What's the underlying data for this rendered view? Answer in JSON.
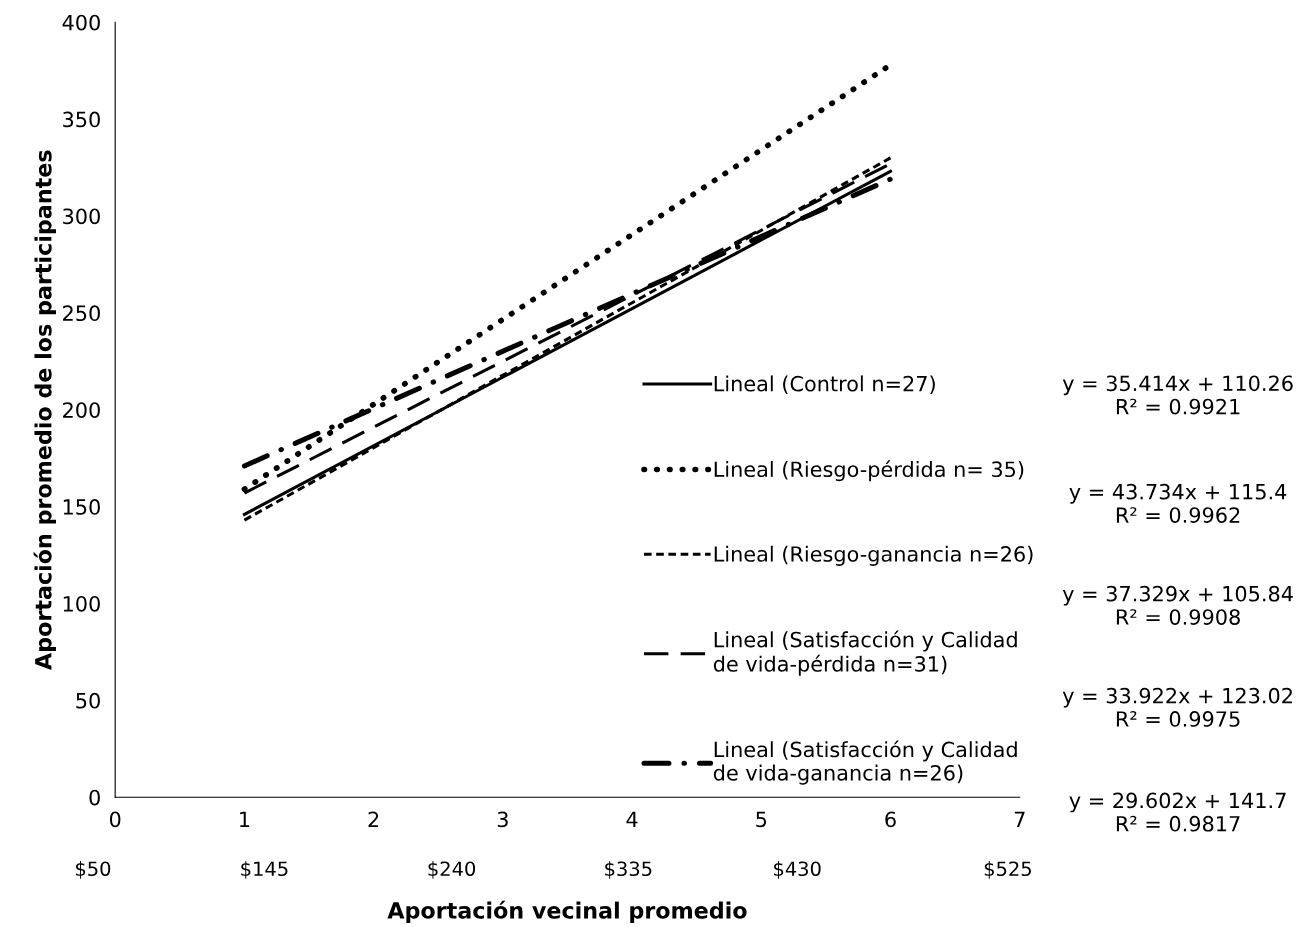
{
  "chart_data": {
    "type": "line",
    "xlabel": "Aportación vecinal promedio",
    "ylabel": "Aportación promedio de los participantes",
    "xlim": [
      0,
      7
    ],
    "xticks": [
      0,
      1,
      2,
      3,
      4,
      5,
      6,
      7
    ],
    "ylim": [
      0,
      400
    ],
    "yticks": [
      0,
      50,
      100,
      150,
      200,
      250,
      300,
      350,
      400
    ],
    "x": [
      1,
      6
    ],
    "grid": false,
    "legend": "right",
    "marker": "none",
    "series": [
      {
        "name": "Lineal (Control n=27)",
        "color": "#000000",
        "line_style": "solid",
        "values": [
          146,
          323
        ]
      },
      {
        "name": "Lineal (Riesgo-pérdida n= 35)",
        "color": "#000000",
        "line_style": "dotted",
        "values": [
          159,
          378
        ]
      },
      {
        "name": "Lineal (Riesgo-ganancia n=26)",
        "color": "#000000",
        "line_style": "dashed",
        "values": [
          143,
          330
        ]
      },
      {
        "name": "Lineal (Satisfacción y Calidad\nde vida-pérdida n=31)",
        "color": "#000000",
        "line_style": "longdash",
        "values": [
          157,
          327
        ]
      },
      {
        "name": "Lineal (Satisfacción y Calidad\nde vida-ganancia n=26)",
        "color": "#000000",
        "line_style": "longdashdot",
        "values": [
          171,
          319
        ]
      }
    ],
    "annotations": [
      "y = 35.414x + 110.26\nR² = 0.9921",
      "y = 43.734x + 115.4\nR² = 0.9962",
      "y = 37.329x + 105.84\nR² = 0.9908",
      "y = 33.922x + 123.02\nR² = 0.9975",
      "y = 29.602x + 141.7\nR² = 0.9817",
      "$50",
      "$145",
      "$240",
      "$335",
      "$430",
      "$525"
    ]
  }
}
